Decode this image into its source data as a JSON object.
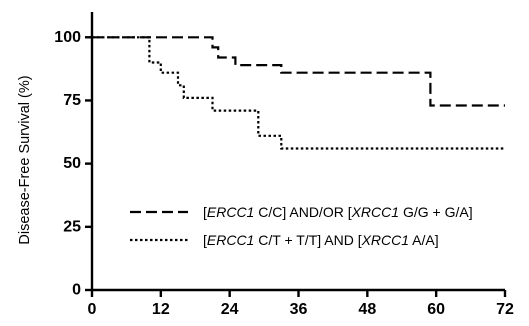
{
  "chart_data": {
    "type": "line",
    "subtype": "kaplan-meier step curves",
    "title": "",
    "xlabel": "",
    "ylabel": "Disease-Free Survival (%)",
    "xlim": [
      0,
      72
    ],
    "ylim": [
      0,
      110
    ],
    "x_ticks": [
      0,
      12,
      24,
      36,
      48,
      60,
      72
    ],
    "y_ticks": [
      0,
      25,
      50,
      75,
      100
    ],
    "grid": false,
    "legend_position": "bottom-right",
    "series": [
      {
        "label_parts": [
          "[",
          "ERCC1",
          " C/C] AND/OR [",
          "XRCC1",
          " G/G + G/A]"
        ],
        "line_style": "dashed",
        "color": "#000000",
        "steps": [
          [
            0,
            100
          ],
          [
            21,
            100
          ],
          [
            21,
            96
          ],
          [
            22,
            96
          ],
          [
            22,
            92
          ],
          [
            25,
            92
          ],
          [
            25,
            89
          ],
          [
            33,
            89
          ],
          [
            33,
            86
          ],
          [
            59,
            86
          ],
          [
            59,
            73
          ],
          [
            72,
            73
          ]
        ]
      },
      {
        "label_parts": [
          "[",
          "ERCC1",
          " C/T + T/T] AND [",
          "XRCC1",
          " A/A]"
        ],
        "line_style": "dotted",
        "color": "#000000",
        "steps": [
          [
            0,
            100
          ],
          [
            10,
            100
          ],
          [
            10,
            90
          ],
          [
            12,
            90
          ],
          [
            12,
            86
          ],
          [
            15,
            86
          ],
          [
            15,
            81
          ],
          [
            16,
            81
          ],
          [
            16,
            76
          ],
          [
            21,
            76
          ],
          [
            21,
            71
          ],
          [
            29,
            71
          ],
          [
            29,
            61
          ],
          [
            33,
            61
          ],
          [
            33,
            56
          ],
          [
            72,
            56
          ]
        ]
      }
    ]
  }
}
